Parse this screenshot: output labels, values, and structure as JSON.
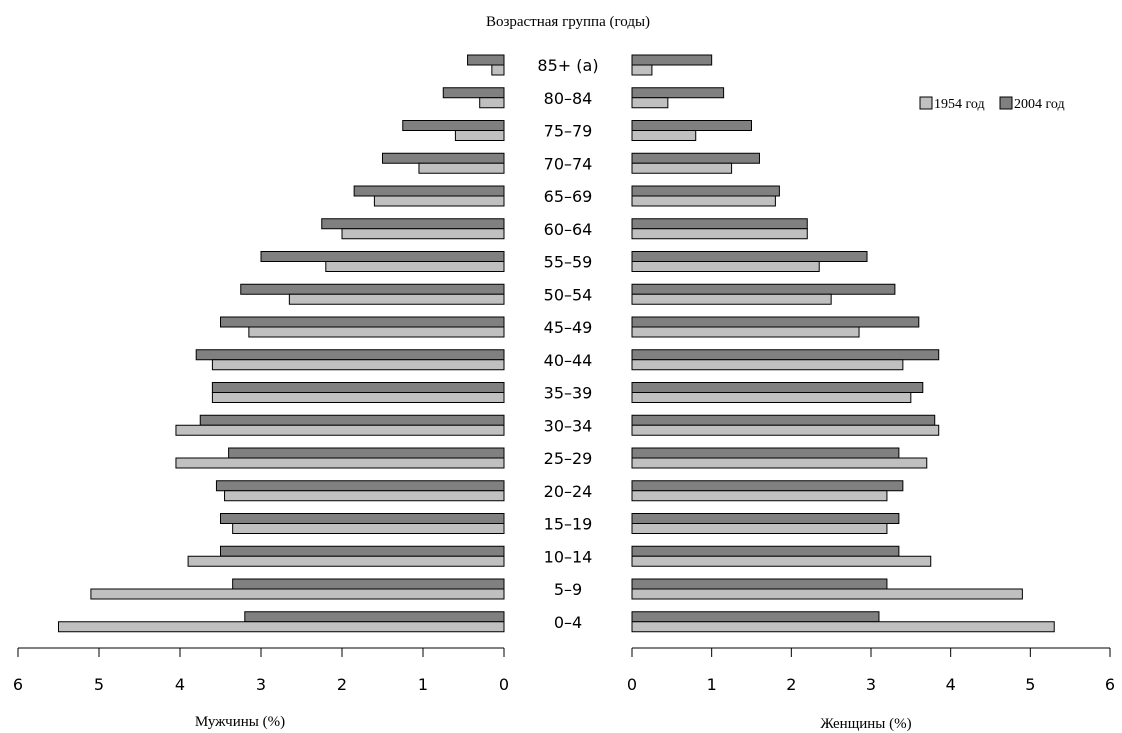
{
  "chart_data": {
    "type": "bar",
    "title": "Возрастная группа (годы)",
    "categories": [
      "85+ (a)",
      "80–84",
      "75–79",
      "70–74",
      "65–69",
      "60–64",
      "55–59",
      "50–54",
      "45–49",
      "40–44",
      "35–39",
      "30–34",
      "25–29",
      "20–24",
      "15–19",
      "10–14",
      "5–9",
      "0–4"
    ],
    "legend": {
      "position": "top-right",
      "entries": [
        "1954 год",
        "2004 год"
      ]
    },
    "series": [
      {
        "name": "1954 год",
        "color": "#c0c0c0",
        "male": [
          0.15,
          0.3,
          0.6,
          1.05,
          1.6,
          2.0,
          2.2,
          2.65,
          3.15,
          3.6,
          3.6,
          4.05,
          4.05,
          3.45,
          3.35,
          3.9,
          5.1,
          5.5
        ],
        "female": [
          0.25,
          0.45,
          0.8,
          1.25,
          1.8,
          2.2,
          2.35,
          2.5,
          2.85,
          3.4,
          3.5,
          3.85,
          3.7,
          3.2,
          3.2,
          3.75,
          4.9,
          5.3
        ]
      },
      {
        "name": "2004 год",
        "color": "#808080",
        "male": [
          0.45,
          0.75,
          1.25,
          1.5,
          1.85,
          2.25,
          3.0,
          3.25,
          3.5,
          3.8,
          3.6,
          3.75,
          3.4,
          3.55,
          3.5,
          3.5,
          3.35,
          3.2
        ],
        "female": [
          1.0,
          1.15,
          1.5,
          1.6,
          1.85,
          2.2,
          2.95,
          3.3,
          3.6,
          3.85,
          3.65,
          3.8,
          3.35,
          3.4,
          3.35,
          3.35,
          3.2,
          3.1
        ]
      }
    ],
    "left_axis": {
      "label": "Мужчины (%)",
      "ticks": [
        "6",
        "5",
        "4",
        "3",
        "2",
        "1",
        "0"
      ],
      "range": [
        0,
        6
      ],
      "reversed": true
    },
    "right_axis": {
      "label": "Женщины (%)",
      "ticks": [
        "0",
        "1",
        "2",
        "3",
        "4",
        "5",
        "6"
      ],
      "range": [
        0,
        6
      ]
    },
    "grid": false
  }
}
